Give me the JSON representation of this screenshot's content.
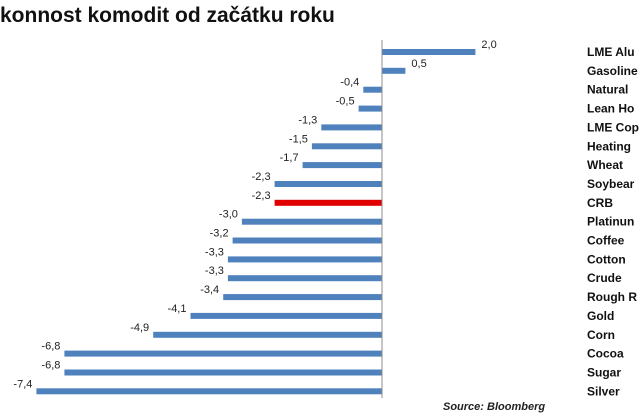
{
  "chart_data": {
    "type": "bar",
    "orientation": "horizontal",
    "title": "konnost komodit od začátku roku",
    "categories": [
      "LME Alu",
      "Gasoline",
      "Natural",
      "Lean Ho",
      "LME Cop",
      "Heating",
      "Wheat",
      "Soybear",
      "CRB",
      "Platinun",
      "Coffee",
      "Cotton",
      "Crude",
      "Rough R",
      "Gold",
      "Corn",
      "Cocoa",
      "Sugar",
      "Silver"
    ],
    "values": [
      2.0,
      0.5,
      -0.4,
      -0.5,
      -1.3,
      -1.5,
      -1.7,
      -2.3,
      -2.3,
      -3.0,
      -3.2,
      -3.3,
      -3.3,
      -3.4,
      -4.1,
      -4.9,
      -6.8,
      -6.8,
      -7.4
    ],
    "value_labels": [
      "2,0",
      "0,5",
      "-0,4",
      "-0,5",
      "-1,3",
      "-1,5",
      "-1,7",
      "-2,3",
      "-2,3",
      "-3,0",
      "-3,2",
      "-3,3",
      "-3,3",
      "-3,4",
      "-4,1",
      "-4,9",
      "-6,8",
      "-6,8",
      "-7,4"
    ],
    "highlight_category": "CRB",
    "colors": {
      "bar": "#4f81bd",
      "highlight": "#e00000",
      "axis": "#8c8c8c"
    },
    "grid": false,
    "legend": "none",
    "source": "Source: Bloomberg"
  }
}
